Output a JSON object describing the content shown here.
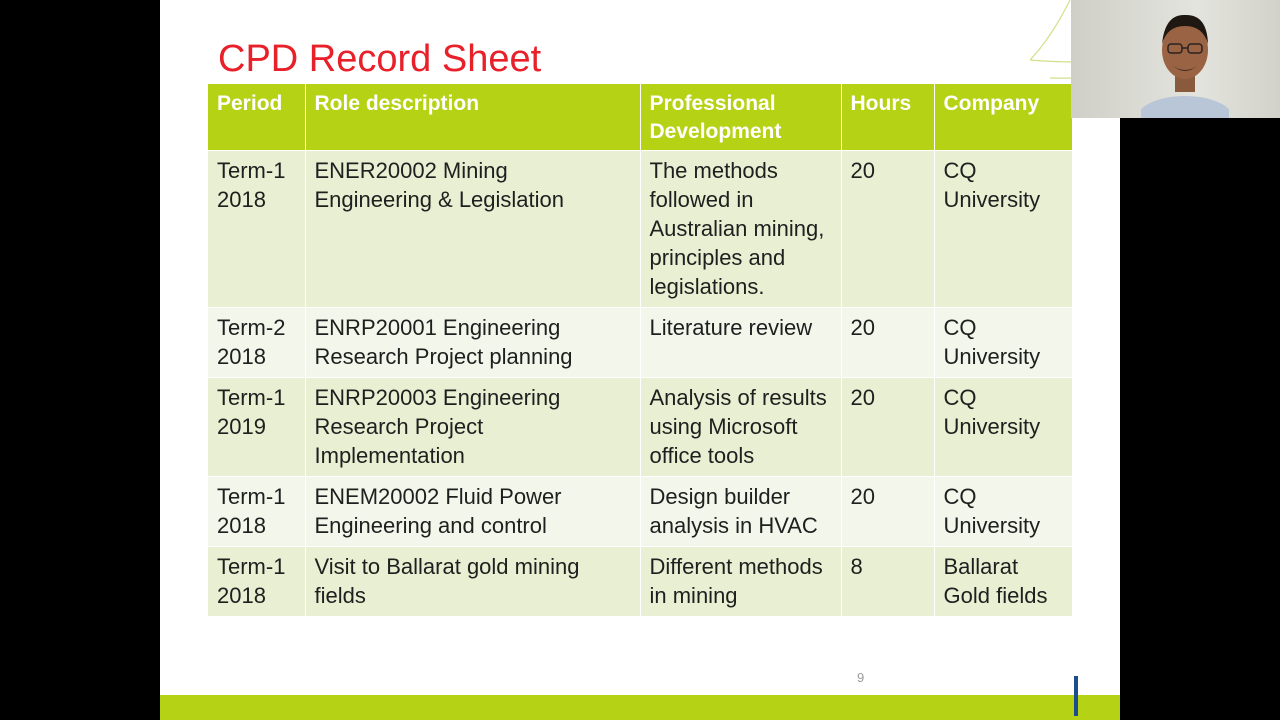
{
  "slide": {
    "title": "CPD Record Sheet",
    "page_number": "9"
  },
  "table": {
    "headers": [
      "Period",
      "Role description",
      "Professional Development",
      "Hours",
      "Company"
    ],
    "rows": [
      {
        "period": "Term-1 2018",
        "role": "ENER20002 Mining Engineering & Legislation",
        "development": "The methods followed in Australian mining, principles and legislations.",
        "hours": "20",
        "company": "CQ University"
      },
      {
        "period": "Term-2 2018",
        "role": "ENRP20001 Engineering Research Project planning",
        "development": "Literature review",
        "hours": "20",
        "company": "CQ University"
      },
      {
        "period": "Term-1 2019",
        "role": "ENRP20003 Engineering Research Project Implementation",
        "development": "Analysis of results using Microsoft office tools",
        "hours": "20",
        "company": "CQ University"
      },
      {
        "period": "Term-1 2018",
        "role": "ENEM20002 Fluid Power Engineering and control",
        "development": "Design builder analysis in HVAC",
        "hours": "20",
        "company": "CQ University"
      },
      {
        "period": "Term-1 2018",
        "role": "Visit to Ballarat gold mining fields",
        "development": "Different methods in mining",
        "hours": "8",
        "company": "Ballarat Gold fields"
      }
    ]
  },
  "colors": {
    "title": "#e8202a",
    "header_bg": "#b5d215",
    "row_a": "#e8efd2",
    "row_b": "#f3f6ea",
    "accent_blue": "#1e4d8c"
  },
  "icons": [
    "webcam-video"
  ]
}
